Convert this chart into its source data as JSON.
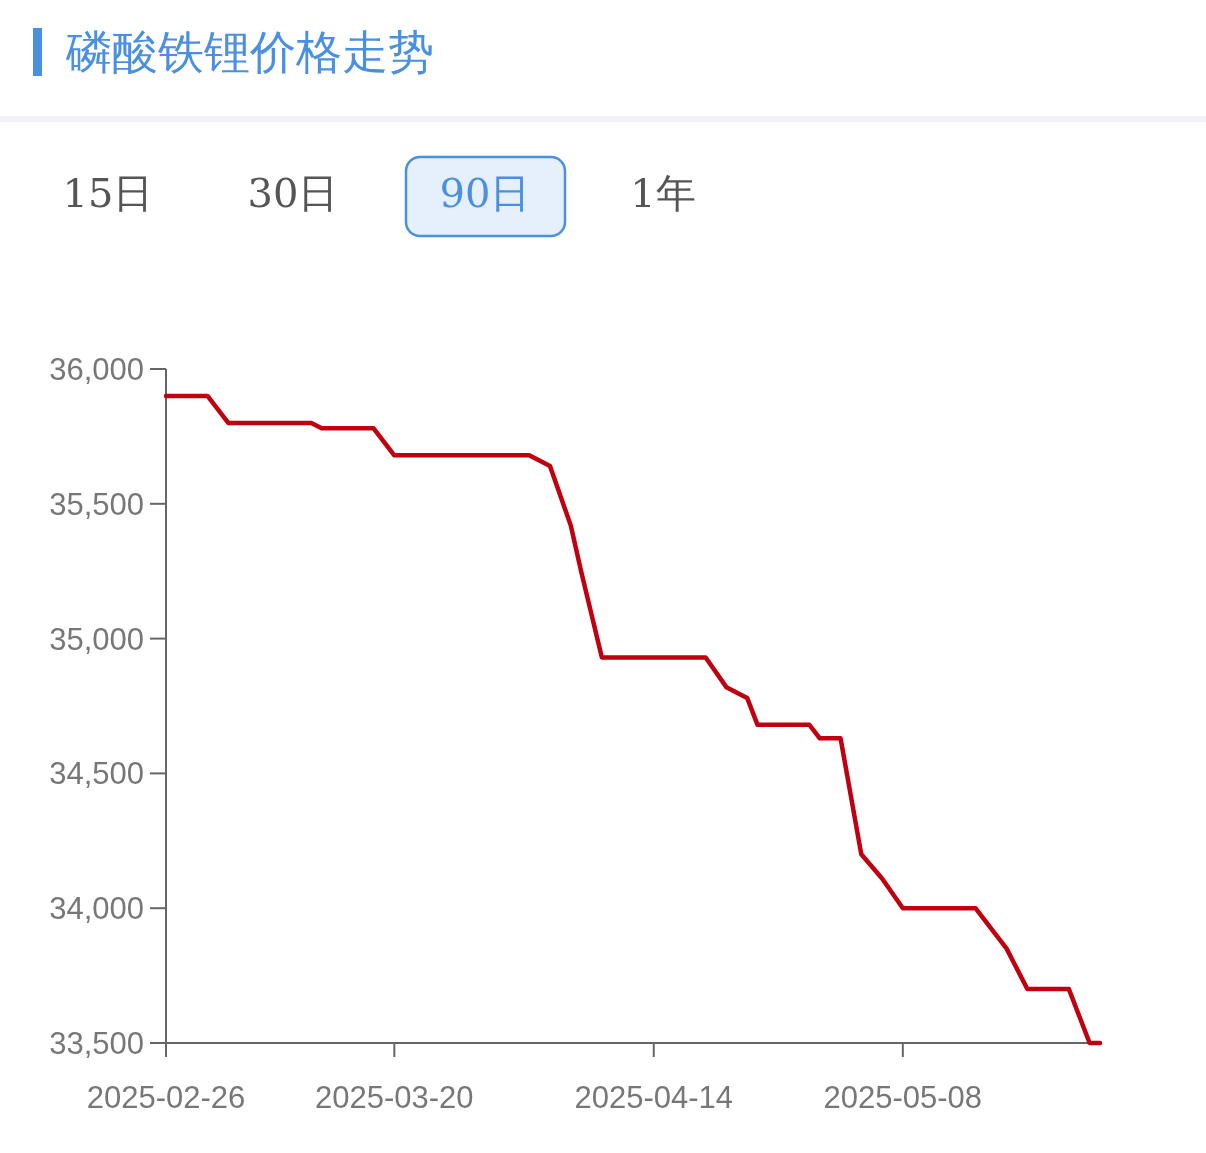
{
  "chart_data": {
    "type": "line",
    "title": "磷酸铁锂价格走势",
    "annotations": [
      "15日",
      "30日",
      "90日",
      "1年"
    ],
    "x": [
      "2025-02-26",
      "2025-03-02",
      "2025-03-04",
      "2025-03-12",
      "2025-03-13",
      "2025-03-18",
      "2025-03-20",
      "2025-04-02",
      "2025-04-04",
      "2025-04-06",
      "2025-04-07",
      "2025-04-09",
      "2025-04-19",
      "2025-04-21",
      "2025-04-23",
      "2025-04-24",
      "2025-04-29",
      "2025-04-30",
      "2025-05-02",
      "2025-05-04",
      "2025-05-06",
      "2025-05-08",
      "2025-05-15",
      "2025-05-18",
      "2025-05-20",
      "2025-05-24",
      "2025-05-26",
      "2025-05-27"
    ],
    "series": [
      {
        "color": "#c0000f",
        "values": [
          35900,
          35900,
          35800,
          35800,
          35780,
          35780,
          35680,
          35680,
          35640,
          35420,
          35250,
          34930,
          34930,
          34820,
          34780,
          34680,
          34680,
          34630,
          34630,
          34200,
          34110,
          34000,
          34000,
          33850,
          33700,
          33700,
          33500,
          33500
        ]
      }
    ],
    "xlim": [
      "2025-02-26",
      "2025-05-27"
    ],
    "xticks": [
      "2025-02-26",
      "2025-03-20",
      "2025-04-14",
      "2025-05-08"
    ],
    "ylim": [
      33500,
      36000
    ],
    "yticks": [
      {
        "value": 33500,
        "label": "33,500"
      },
      {
        "value": 34000,
        "label": "34,000"
      },
      {
        "value": 34500,
        "label": "34,500"
      },
      {
        "value": 35000,
        "label": "35,000"
      },
      {
        "value": 35500,
        "label": "35,500"
      },
      {
        "value": 36000,
        "label": "36,000"
      }
    ],
    "grid": false,
    "marker": "none",
    "line_style": "solid"
  }
}
